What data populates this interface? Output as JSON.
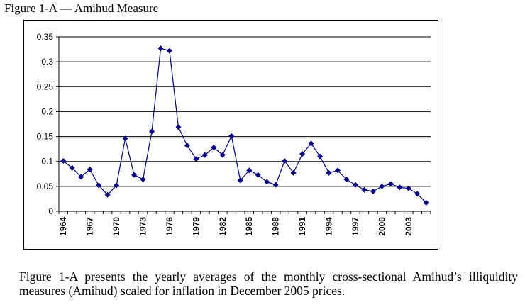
{
  "figure": {
    "title": "Figure 1-A — Amihud Measure",
    "caption": "Figure 1-A presents the yearly averages of the monthly cross-sectional Amihud’s illiquidity measures (Amihud) scaled for inflation in December 2005 prices."
  },
  "chart_data": {
    "type": "line",
    "title": "Figure 1-A — Amihud Measure",
    "xlabel": "",
    "ylabel": "",
    "x": [
      1964,
      1965,
      1966,
      1967,
      1968,
      1969,
      1970,
      1971,
      1972,
      1973,
      1974,
      1975,
      1976,
      1977,
      1978,
      1979,
      1980,
      1981,
      1982,
      1983,
      1984,
      1985,
      1986,
      1987,
      1988,
      1989,
      1990,
      1991,
      1992,
      1993,
      1994,
      1995,
      1996,
      1997,
      1998,
      1999,
      2000,
      2001,
      2002,
      2003,
      2004,
      2005
    ],
    "series": [
      {
        "name": "Amihud",
        "color": "#000080",
        "values": [
          0.101,
          0.087,
          0.069,
          0.084,
          0.052,
          0.033,
          0.052,
          0.146,
          0.073,
          0.064,
          0.16,
          0.327,
          0.322,
          0.169,
          0.132,
          0.105,
          0.113,
          0.128,
          0.113,
          0.151,
          0.062,
          0.082,
          0.073,
          0.059,
          0.053,
          0.101,
          0.077,
          0.115,
          0.136,
          0.11,
          0.077,
          0.082,
          0.064,
          0.053,
          0.043,
          0.04,
          0.05,
          0.055,
          0.048,
          0.046,
          0.035,
          0.017
        ]
      }
    ],
    "xtick_labels": [
      "1964",
      "1967",
      "1970",
      "1973",
      "1976",
      "1979",
      "1982",
      "1985",
      "1988",
      "1991",
      "1994",
      "1997",
      "2000",
      "2003"
    ],
    "yticks": [
      0,
      0.05,
      0.1,
      0.15,
      0.2,
      0.25,
      0.3,
      0.35
    ],
    "ytick_labels": [
      "0",
      "0.05",
      "0.1",
      "0.15",
      "0.2",
      "0.25",
      "0.3",
      "0.35"
    ],
    "ylim": [
      0,
      0.35
    ],
    "grid": true,
    "legend": "none",
    "marker": "diamond"
  }
}
